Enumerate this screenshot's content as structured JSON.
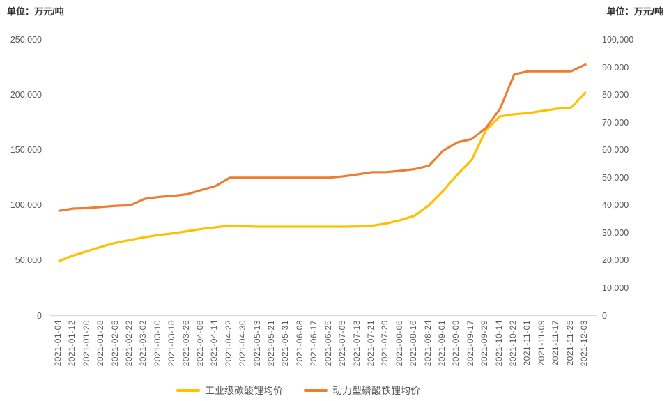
{
  "chart_data": {
    "type": "line",
    "title": "",
    "categories": [
      "2021-01-04",
      "2021-01-12",
      "2021-01-20",
      "2021-01-28",
      "2021-02-05",
      "2021-02-22",
      "2021-03-02",
      "2021-03-10",
      "2021-03-18",
      "2021-03-26",
      "2021-04-06",
      "2021-04-14",
      "2021-04-22",
      "2021-04-30",
      "2021-05-13",
      "2021-05-21",
      "2021-05-31",
      "2021-06-08",
      "2021-06-17",
      "2021-06-25",
      "2021-07-05",
      "2021-07-13",
      "2021-07-21",
      "2021-07-29",
      "2021-08-06",
      "2021-08-16",
      "2021-08-24",
      "2021-09-01",
      "2021-09-09",
      "2021-09-17",
      "2021-09-29",
      "2021-10-14",
      "2021-10-22",
      "2021-11-01",
      "2021-11-09",
      "2021-11-17",
      "2021-11-25",
      "2021-12-03"
    ],
    "series": [
      {
        "name": "工业级碳酸锂均价",
        "axis": "left",
        "color": "#FFC000",
        "values": [
          49500,
          54500,
          58500,
          62500,
          66000,
          68500,
          71000,
          73000,
          74500,
          76500,
          78500,
          80000,
          81700,
          81000,
          80600,
          80600,
          80600,
          80600,
          80600,
          80600,
          80600,
          80800,
          81500,
          83500,
          86500,
          90500,
          100000,
          113000,
          128000,
          141000,
          168000,
          180500,
          182500,
          183500,
          185600,
          187500,
          188500,
          202000
        ]
      },
      {
        "name": "动力型磷酸铁锂均价",
        "axis": "right",
        "color": "#ED7D31",
        "values": [
          38000,
          38800,
          39000,
          39400,
          39800,
          40000,
          42300,
          43000,
          43400,
          44000,
          45500,
          47000,
          50000,
          50000,
          50000,
          50000,
          50000,
          50000,
          50000,
          50000,
          50500,
          51200,
          52000,
          52000,
          52500,
          53100,
          54300,
          59800,
          62800,
          64000,
          68000,
          75000,
          87500,
          88600,
          88600,
          88600,
          88600,
          91000
        ]
      }
    ],
    "left_axis": {
      "title": "单位：万元/吨",
      "min": 0,
      "max": 250000,
      "tick_step": 50000,
      "tick_labels": [
        "0",
        "50,000",
        "100,000",
        "150,000",
        "200,000",
        "250,000"
      ]
    },
    "right_axis": {
      "title": "单位：万元/吨",
      "min": 0,
      "max": 100000,
      "tick_step": 10000,
      "tick_labels": [
        "0",
        "10,000",
        "20,000",
        "30,000",
        "40,000",
        "50,000",
        "60,000",
        "70,000",
        "80,000",
        "90,000",
        "100,000"
      ]
    },
    "grid": false,
    "legend_position": "bottom",
    "axis_line_color": "#D9D9D9",
    "tick_text_color": "#595959"
  }
}
